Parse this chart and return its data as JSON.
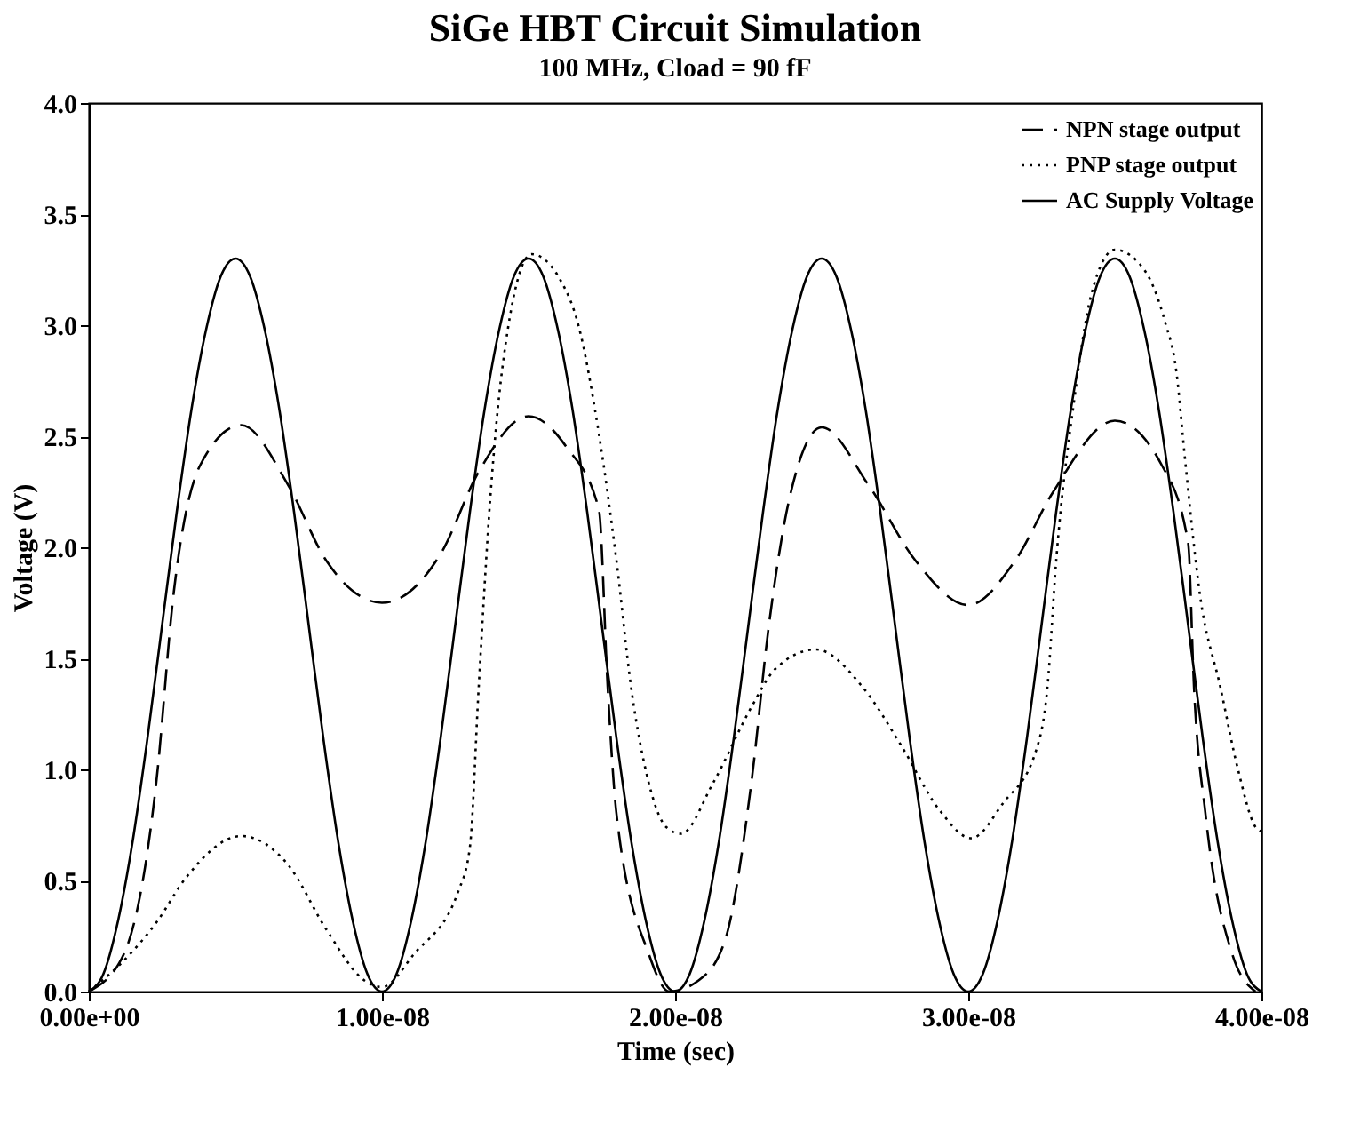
{
  "chart_data": {
    "type": "line",
    "title": "SiGe HBT Circuit Simulation",
    "subtitle": "100 MHz, Cload = 90 fF",
    "xlabel": "Time (sec)",
    "ylabel": "Voltage (V)",
    "xlim": [
      0,
      4e-08
    ],
    "ylim": [
      0,
      4.0
    ],
    "xticks": [
      {
        "value": 0,
        "label": "0.00e+00"
      },
      {
        "value": 1e-08,
        "label": "1.00e-08"
      },
      {
        "value": 2e-08,
        "label": "2.00e-08"
      },
      {
        "value": 3e-08,
        "label": "3.00e-08"
      },
      {
        "value": 4e-08,
        "label": "4.00e-08"
      }
    ],
    "yticks": [
      {
        "value": 0,
        "label": "0.0"
      },
      {
        "value": 0.5,
        "label": "0.5"
      },
      {
        "value": 1,
        "label": "1.0"
      },
      {
        "value": 1.5,
        "label": "1.5"
      },
      {
        "value": 2,
        "label": "2.0"
      },
      {
        "value": 2.5,
        "label": "2.5"
      },
      {
        "value": 3,
        "label": "3.0"
      },
      {
        "value": 3.5,
        "label": "3.5"
      },
      {
        "value": 4,
        "label": "4.0"
      }
    ],
    "grid": false,
    "legend": "top right",
    "marker": "none",
    "series": [
      {
        "name": "NPN stage output",
        "color": "#000000",
        "line_style": "dashed",
        "x": [
          0,
          1.2e-09,
          2.3e-09,
          2.9e-09,
          3.8e-09,
          5.2e-09,
          6.8e-09,
          8.1e-09,
          1e-08,
          1.2e-08,
          1.33e-08,
          1.5e-08,
          1.63e-08,
          1.74e-08,
          1.77e-08,
          1.8e-08,
          1.91e-08,
          1.98e-08,
          2.08e-08,
          2.17e-08,
          2.26e-08,
          2.32e-08,
          2.39e-08,
          2.5e-08,
          2.66e-08,
          2.82e-08,
          3e-08,
          3.16e-08,
          3.29e-08,
          3.5e-08,
          3.66e-08,
          3.75e-08,
          3.77e-08,
          3.81e-08,
          3.9e-08,
          3.98e-08
        ],
        "values": [
          0,
          0.17,
          0.94,
          1.8,
          2.37,
          2.55,
          2.28,
          1.94,
          1.75,
          1.97,
          2.34,
          2.59,
          2.45,
          2.17,
          1.37,
          0.8,
          0.17,
          0,
          0.05,
          0.23,
          0.94,
          1.65,
          2.22,
          2.54,
          2.28,
          1.94,
          1.74,
          1.94,
          2.25,
          2.57,
          2.37,
          2.02,
          1.37,
          0.79,
          0.17,
          0
        ]
      },
      {
        "name": "PNP stage output",
        "color": "#000000",
        "line_style": "dotted",
        "x": [
          0,
          1.2e-09,
          2.3e-09,
          3.3e-09,
          5.2e-09,
          6.8e-09,
          8.1e-09,
          9.4e-09,
          1e-08,
          1.11e-08,
          1.26e-08,
          1.3e-08,
          1.33e-08,
          1.37e-08,
          1.41e-08,
          1.51e-08,
          1.61e-08,
          1.67e-08,
          1.74e-08,
          1.8e-08,
          1.85e-08,
          1.91e-08,
          1.97e-08,
          2.02e-08,
          2.13e-08,
          2.26e-08,
          2.34e-08,
          2.48e-08,
          2.64e-08,
          2.77e-08,
          2.9e-08,
          3.01e-08,
          3.12e-08,
          3.23e-08,
          3.27e-08,
          3.3e-08,
          3.36e-08,
          3.42e-08,
          3.5e-08,
          3.6e-08,
          3.67e-08,
          3.71e-08,
          3.74e-08,
          3.79e-08,
          3.86e-08,
          3.92e-08,
          3.98e-08,
          4e-08
        ],
        "values": [
          0,
          0.14,
          0.31,
          0.51,
          0.7,
          0.57,
          0.28,
          0.05,
          0.02,
          0.17,
          0.45,
          0.65,
          1.37,
          2.23,
          2.8,
          3.32,
          3.2,
          3.0,
          2.51,
          1.94,
          1.37,
          0.94,
          0.74,
          0.71,
          0.94,
          1.28,
          1.45,
          1.54,
          1.37,
          1.11,
          0.82,
          0.69,
          0.85,
          1.08,
          1.37,
          1.94,
          2.65,
          3.14,
          3.34,
          3.25,
          3.02,
          2.79,
          2.39,
          1.79,
          1.37,
          1.0,
          0.74,
          0.72
        ]
      },
      {
        "name": "AC Supply Voltage",
        "color": "#000000",
        "line_style": "solid",
        "x": [
          0,
          5e-10,
          1e-09,
          1.5e-09,
          2e-09,
          2.5e-09,
          3e-09,
          3.5e-09,
          4e-09,
          4.5e-09,
          5e-09,
          5.5e-09,
          6e-09,
          6.5e-09,
          7e-09,
          7.5e-09,
          8e-09,
          8.5e-09,
          9e-09,
          9.5e-09,
          1e-08,
          1.05e-08,
          1.1e-08,
          1.15e-08,
          1.2e-08,
          1.25e-08,
          1.3e-08,
          1.35e-08,
          1.4e-08,
          1.45e-08,
          1.5e-08,
          1.55e-08,
          1.6e-08,
          1.65e-08,
          1.7e-08,
          1.75e-08,
          1.8e-08,
          1.85e-08,
          1.9e-08,
          1.95e-08,
          2e-08,
          2.05e-08,
          2.1e-08,
          2.15e-08,
          2.2e-08,
          2.25e-08,
          2.3e-08,
          2.35e-08,
          2.4e-08,
          2.45e-08,
          2.5e-08,
          2.55e-08,
          2.6e-08,
          2.65e-08,
          2.7e-08,
          2.75e-08,
          2.8e-08,
          2.85e-08,
          2.9e-08,
          2.95e-08,
          3e-08,
          3.05e-08,
          3.1e-08,
          3.15e-08,
          3.2e-08,
          3.25e-08,
          3.3e-08,
          3.35e-08,
          3.4e-08,
          3.45e-08,
          3.5e-08,
          3.55e-08,
          3.6e-08,
          3.65e-08,
          3.7e-08,
          3.75e-08,
          3.8e-08,
          3.85e-08,
          3.9e-08,
          3.95e-08,
          4e-08
        ],
        "values": [
          0,
          0.08,
          0.32,
          0.68,
          1.14,
          1.65,
          2.16,
          2.62,
          2.98,
          3.22,
          3.3,
          3.22,
          2.98,
          2.62,
          2.16,
          1.65,
          1.14,
          0.68,
          0.32,
          0.08,
          0,
          0.08,
          0.32,
          0.68,
          1.14,
          1.65,
          2.16,
          2.62,
          2.98,
          3.22,
          3.3,
          3.22,
          2.98,
          2.62,
          2.16,
          1.65,
          1.14,
          0.68,
          0.32,
          0.08,
          0,
          0.08,
          0.32,
          0.68,
          1.14,
          1.65,
          2.16,
          2.62,
          2.98,
          3.22,
          3.3,
          3.22,
          2.98,
          2.62,
          2.16,
          1.65,
          1.14,
          0.68,
          0.32,
          0.08,
          0,
          0.08,
          0.32,
          0.68,
          1.14,
          1.65,
          2.16,
          2.62,
          2.98,
          3.22,
          3.3,
          3.22,
          2.98,
          2.62,
          2.16,
          1.65,
          1.14,
          0.68,
          0.32,
          0.08,
          0
        ]
      }
    ]
  }
}
